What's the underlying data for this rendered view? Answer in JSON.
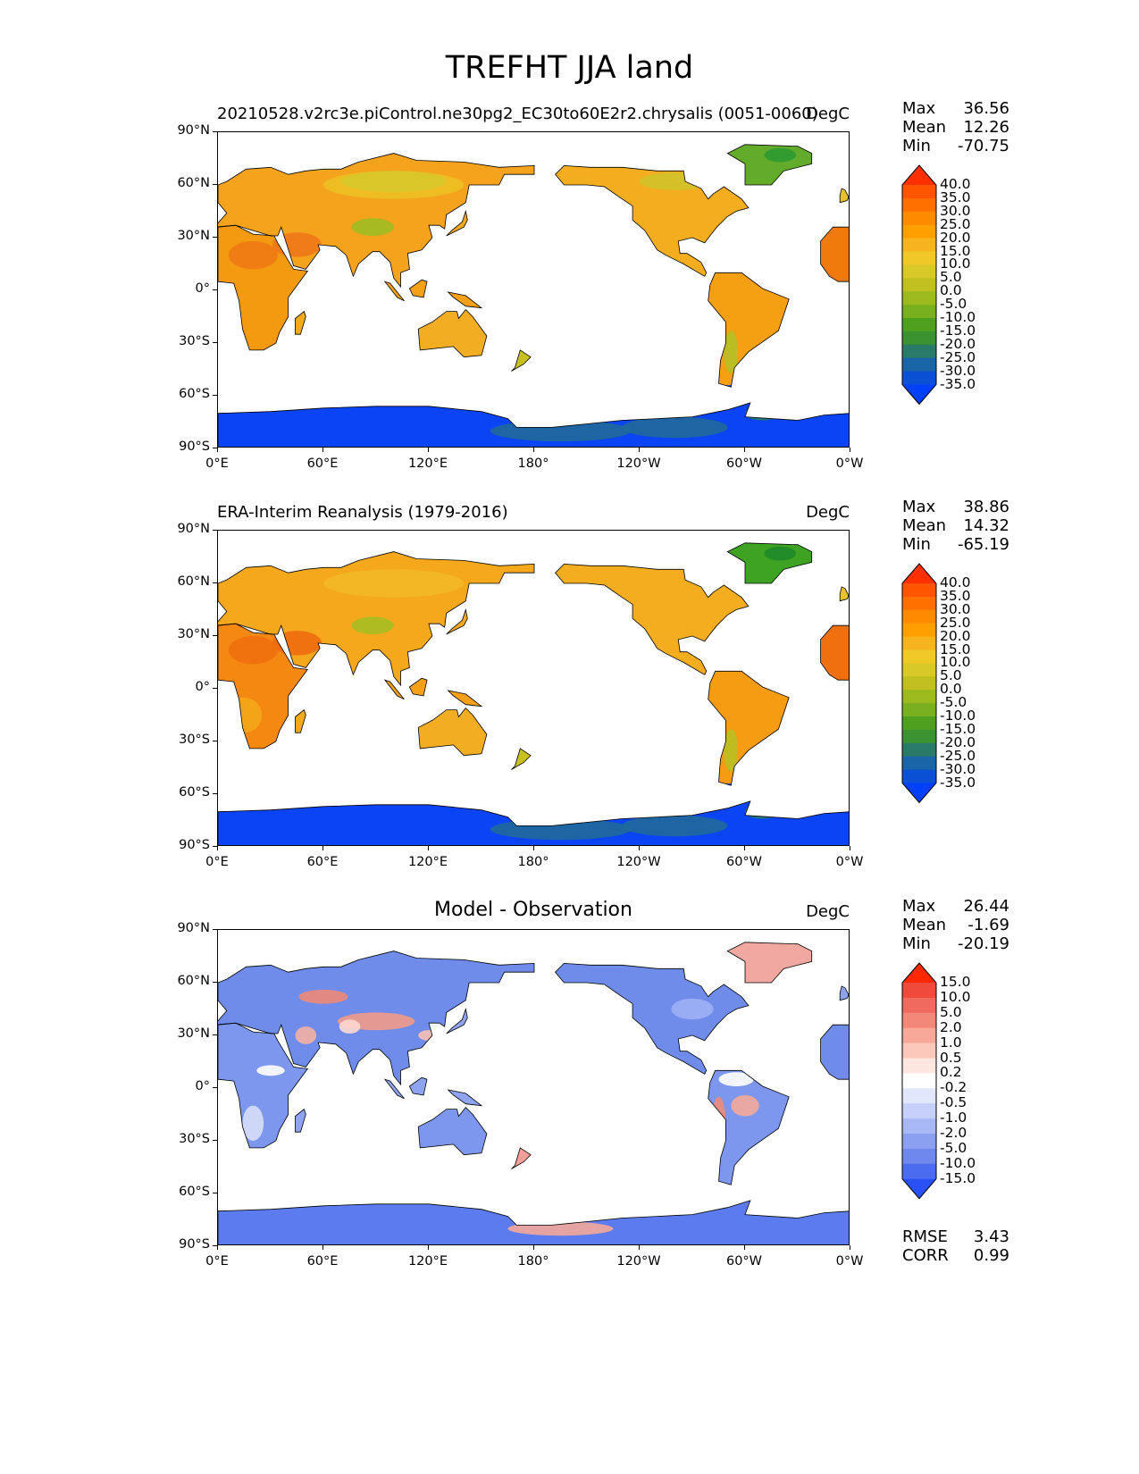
{
  "title": "TREFHT JJA land",
  "panels": [
    {
      "id": "model",
      "title": "20210528.v2rc3e.piControl.ne30pg2_EC30to60E2r2.chrysalis (0051-0060)",
      "title_align": "left",
      "units": "DegC",
      "stats": [
        {
          "label": "Max",
          "value": "36.56"
        },
        {
          "label": "Mean",
          "value": "12.26"
        },
        {
          "label": "Min",
          "value": "-70.75"
        }
      ],
      "colorbar": {
        "labels": [
          "40.0",
          "35.0",
          "30.0",
          "25.0",
          "20.0",
          "15.0",
          "10.0",
          "5.0",
          "0.0",
          "-5.0",
          "-10.0",
          "-15.0",
          "-20.0",
          "-25.0",
          "-30.0",
          "-35.0"
        ],
        "colors": [
          "#ff3000",
          "#ff5400",
          "#ff7000",
          "#ff8a00",
          "#ffa000",
          "#f8b41e",
          "#f0c828",
          "#d8c828",
          "#c0c020",
          "#9cba1e",
          "#78b020",
          "#50a020",
          "#3a9230",
          "#2a7a6a",
          "#1a64a8",
          "#0a50d4",
          "#0040f8"
        ]
      }
    },
    {
      "id": "observation",
      "title": "ERA-Interim Reanalysis (1979-2016)",
      "title_align": "left",
      "units": "DegC",
      "stats": [
        {
          "label": "Max",
          "value": "38.86"
        },
        {
          "label": "Mean",
          "value": "14.32"
        },
        {
          "label": "Min",
          "value": "-65.19"
        }
      ],
      "colorbar": {
        "labels": [
          "40.0",
          "35.0",
          "30.0",
          "25.0",
          "20.0",
          "15.0",
          "10.0",
          "5.0",
          "0.0",
          "-5.0",
          "-10.0",
          "-15.0",
          "-20.0",
          "-25.0",
          "-30.0",
          "-35.0"
        ],
        "colors": [
          "#ff3000",
          "#ff5400",
          "#ff7000",
          "#ff8a00",
          "#ffa000",
          "#f8b41e",
          "#f0c828",
          "#d8c828",
          "#c0c020",
          "#9cba1e",
          "#78b020",
          "#50a020",
          "#3a9230",
          "#2a7a6a",
          "#1a64a8",
          "#0a50d4",
          "#0040f8"
        ]
      }
    },
    {
      "id": "difference",
      "title": "Model - Observation",
      "title_align": "center",
      "units": "DegC",
      "stats": [
        {
          "label": "Max",
          "value": "26.44"
        },
        {
          "label": "Mean",
          "value": "-1.69"
        },
        {
          "label": "Min",
          "value": "-20.19"
        }
      ],
      "extra_stats": [
        {
          "label": "RMSE",
          "value": "3.43"
        },
        {
          "label": "CORR",
          "value": "0.99"
        }
      ],
      "colorbar": {
        "labels": [
          "15.0",
          "10.0",
          "5.0",
          "2.0",
          "1.0",
          "0.5",
          "0.2",
          "-0.2",
          "-0.5",
          "-1.0",
          "-2.0",
          "-5.0",
          "-10.0",
          "-15.0"
        ],
        "colors": [
          "#ff2800",
          "#f04a3c",
          "#f06a60",
          "#f48878",
          "#f8a898",
          "#fcc8bc",
          "#fde6e0",
          "#ffffff",
          "#e2e8fc",
          "#c6d0f8",
          "#a8b8f6",
          "#8ca0f2",
          "#6e88ee",
          "#4c6cf0",
          "#2850f4"
        ]
      }
    }
  ],
  "lat_ticks": [
    "90°N",
    "60°N",
    "30°N",
    "0°",
    "30°S",
    "60°S",
    "90°S"
  ],
  "lon_ticks": [
    "0°E",
    "60°E",
    "120°E",
    "180°",
    "120°W",
    "60°W",
    "0°W"
  ]
}
